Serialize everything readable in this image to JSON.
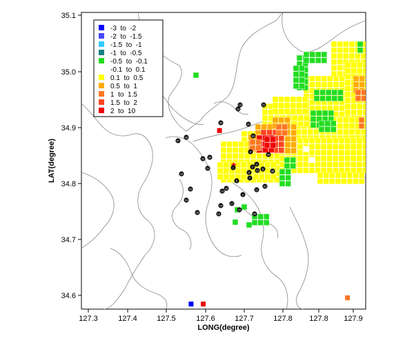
{
  "chart_data": {
    "type": "heatmap",
    "xlabel": "LONG(degree)",
    "ylabel": "LAT(degree)",
    "xlim": [
      127.25,
      127.95
    ],
    "ylim": [
      34.575,
      35.1
    ],
    "x_ticks": [
      "127.3",
      "127.4",
      "127.5",
      "127.6",
      "127.7",
      "127.8",
      "127.8",
      "127.9"
    ],
    "y_ticks": [
      "34.6",
      "34.7",
      "34.8",
      "34.9",
      "35.0",
      "35.1"
    ],
    "legend": {
      "placement": "top-left",
      "entries": [
        {
          "label": "-3  to  -2",
          "color": "#0000ff"
        },
        {
          "label": "-2  to  -1.5",
          "color": "#4848ff"
        },
        {
          "label": "-1.5  to  -1",
          "color": "#33ccff"
        },
        {
          "label": "-1  to  -0.5",
          "color": "#1a8080"
        },
        {
          "label": "-0.5  to  -0.1",
          "color": "#22dd22"
        },
        {
          "label": "-0.1  to  0.1",
          "color": "#ffffff"
        },
        {
          "label": "0.1  to  0.5",
          "color": "#ffff00"
        },
        {
          "label": "0.5  to  1",
          "color": "#ffaa00"
        },
        {
          "label": "1  to  1.5",
          "color": "#ff7722"
        },
        {
          "label": "1.5  to  2",
          "color": "#ff4422"
        },
        {
          "label": "2  to  10",
          "color": "#ee0000"
        }
      ]
    },
    "marker": {
      "label": "epicenter-star",
      "lon": 127.625,
      "lat": 34.83,
      "color": "#ff0000"
    },
    "isolated_cells": [
      {
        "lon": 127.52,
        "lat": 34.584,
        "class": "-3  to  -2"
      },
      {
        "lon": 127.55,
        "lat": 34.584,
        "class": "2  to  10"
      },
      {
        "lon": 127.59,
        "lat": 34.891,
        "class": "2  to  10"
      },
      {
        "lon": 127.905,
        "lat": 34.595,
        "class": "1  to  1.5"
      }
    ],
    "stations": [
      "1",
      "2",
      "3",
      "4",
      "5",
      "6",
      "7",
      "8",
      "9",
      "10",
      "11",
      "12",
      "13",
      "14",
      "15",
      "16",
      "17",
      "18",
      "19",
      "20",
      "21",
      "22",
      "23",
      "24",
      "25",
      "26",
      "27",
      "28",
      "29",
      "30",
      "31",
      "32",
      "33",
      "34",
      "35",
      "36"
    ]
  }
}
